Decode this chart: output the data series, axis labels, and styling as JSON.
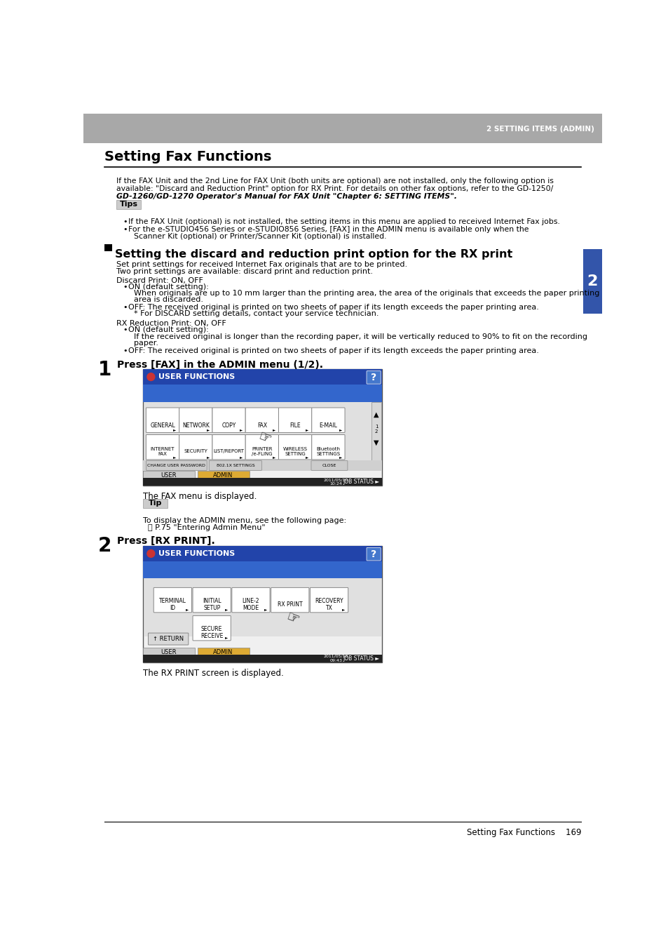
{
  "page_bg": "#ffffff",
  "header_bg": "#a8a8a8",
  "header_text": "2 SETTING ITEMS (ADMIN)",
  "header_text_color": "#ffffff",
  "title": "Setting Fax Functions",
  "title_fontsize": 14,
  "body_text_color": "#000000",
  "tip_box_bg": "#cccccc",
  "footer_text": "Setting Fax Functions    169",
  "sidebar_color": "#3355aa",
  "sidebar_text": "2",
  "screen_dark_blue": "#2244aa",
  "screen_mid_blue": "#3366cc",
  "screen_btn_blue": "#4477cc",
  "screen_content_bg": "#e0e0e0",
  "screen_outer_bg": "#f0f0f0",
  "screen_status_bg": "#222222",
  "tab_admin_color": "#ddaa33"
}
